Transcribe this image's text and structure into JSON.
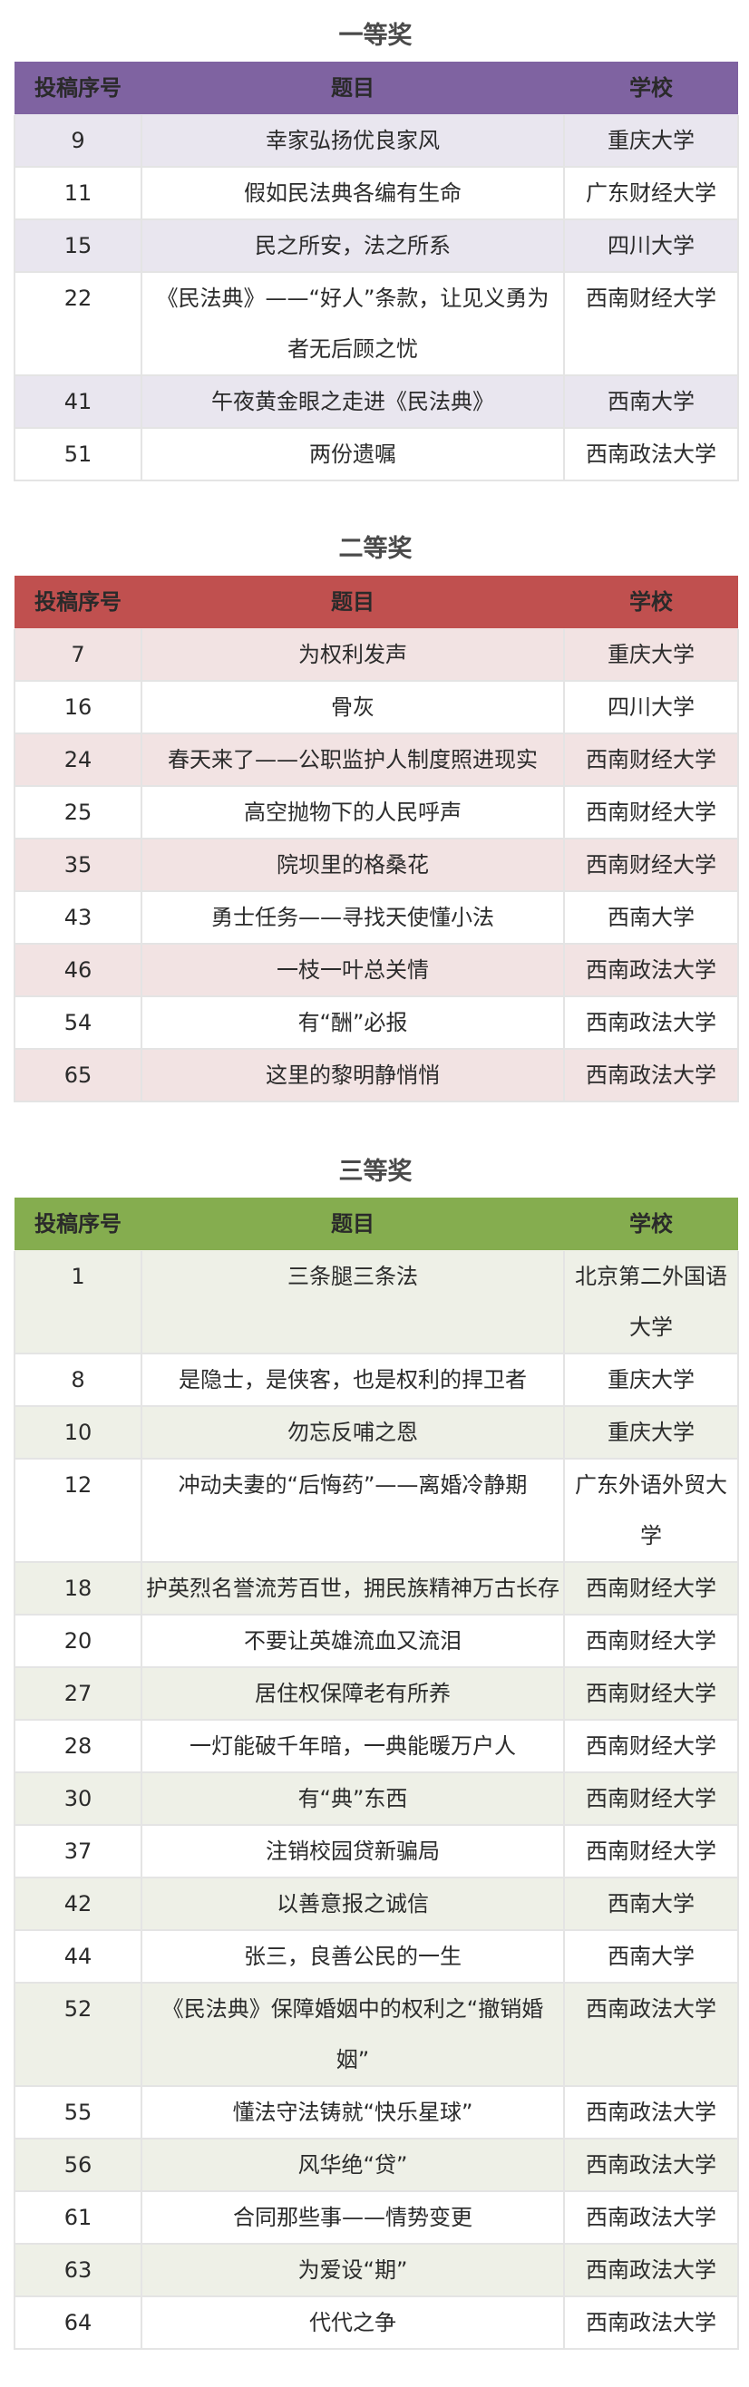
{
  "columns": [
    "投稿序号",
    "题目",
    "学校"
  ],
  "sections": [
    {
      "title": "一等奖",
      "header_color": "#7f63a1",
      "stripe_color": "#e9e6ef",
      "rows": [
        [
          "9",
          "幸家弘扬优良家风",
          "重庆大学"
        ],
        [
          "11",
          "假如民法典各编有生命",
          "广东财经大学"
        ],
        [
          "15",
          "民之所安，法之所系",
          "四川大学"
        ],
        [
          "22",
          "《民法典》——“好人”条款，让见义勇为者无后顾之忧",
          "西南财经大学"
        ],
        [
          "41",
          "午夜黄金眼之走进《民法典》",
          "西南大学"
        ],
        [
          "51",
          "两份遗嘱",
          "西南政法大学"
        ]
      ]
    },
    {
      "title": "二等奖",
      "header_color": "#c0504f",
      "stripe_color": "#f2e3e3",
      "rows": [
        [
          "7",
          "为权利发声",
          "重庆大学"
        ],
        [
          "16",
          "骨灰",
          "四川大学"
        ],
        [
          "24",
          "春天来了——公职监护人制度照进现实",
          "西南财经大学"
        ],
        [
          "25",
          "高空抛物下的人民呼声",
          "西南财经大学"
        ],
        [
          "35",
          "院坝里的格桑花",
          "西南财经大学"
        ],
        [
          "43",
          "勇士任务——寻找天使懂小法",
          "西南大学"
        ],
        [
          "46",
          "一枝一叶总关情",
          "西南政法大学"
        ],
        [
          "54",
          "有“酬”必报",
          "西南政法大学"
        ],
        [
          "65",
          "这里的黎明静悄悄",
          "西南政法大学"
        ]
      ]
    },
    {
      "title": "三等奖",
      "header_color": "#85ad4f",
      "stripe_color": "#eef0e7",
      "rows": [
        [
          "1",
          "三条腿三条法",
          "北京第二外国语大学"
        ],
        [
          "8",
          "是隐士，是侠客，也是权利的捍卫者",
          "重庆大学"
        ],
        [
          "10",
          "勿忘反哺之恩",
          "重庆大学"
        ],
        [
          "12",
          "冲动夫妻的“后悔药”——离婚冷静期",
          "广东外语外贸大学"
        ],
        [
          "18",
          "护英烈名誉流芳百世，拥民族精神万古长存",
          "西南财经大学"
        ],
        [
          "20",
          "不要让英雄流血又流泪",
          "西南财经大学"
        ],
        [
          "27",
          "居住权保障老有所养",
          "西南财经大学"
        ],
        [
          "28",
          "一灯能破千年暗，一典能暖万户人",
          "西南财经大学"
        ],
        [
          "30",
          "有“典”东西",
          "西南财经大学"
        ],
        [
          "37",
          "注销校园贷新骗局",
          "西南财经大学"
        ],
        [
          "42",
          "以善意报之诚信",
          "西南大学"
        ],
        [
          "44",
          "张三，良善公民的一生",
          "西南大学"
        ],
        [
          "52",
          "《民法典》保障婚姻中的权利之“撤销婚姻”",
          "西南政法大学"
        ],
        [
          "55",
          "懂法守法铸就“快乐星球”",
          "西南政法大学"
        ],
        [
          "56",
          "风华绝“贷”",
          "西南政法大学"
        ],
        [
          "61",
          "合同那些事——情势变更",
          "西南政法大学"
        ],
        [
          "63",
          "为爱设“期”",
          "西南政法大学"
        ],
        [
          "64",
          "代代之争",
          "西南政法大学"
        ]
      ]
    }
  ]
}
